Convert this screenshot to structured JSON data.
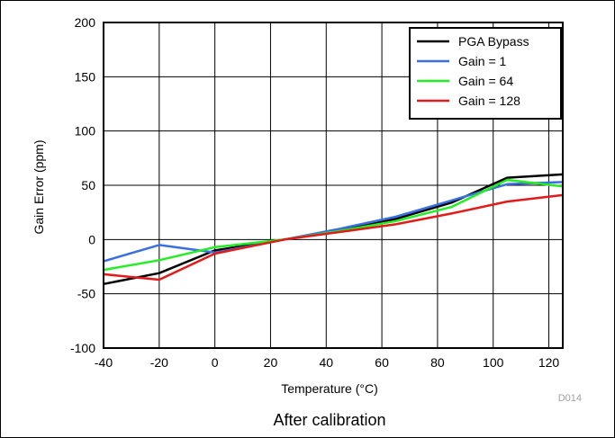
{
  "chart_data": {
    "type": "line",
    "xlabel": "Temperature (°C)",
    "ylabel": "Gain Error (ppm)",
    "caption": "After calibration",
    "figure_id": "D014",
    "xlim": [
      -40,
      125
    ],
    "ylim": [
      -100,
      200
    ],
    "x_ticks": [
      -40,
      -20,
      0,
      20,
      40,
      60,
      80,
      100,
      120
    ],
    "y_ticks": [
      -100,
      -50,
      0,
      50,
      100,
      150,
      200
    ],
    "grid": true,
    "legend_position": "top-right",
    "series": [
      {
        "name": "PGA Bypass",
        "color": "#000000",
        "x": [
          -40,
          -20,
          0,
          25,
          45,
          65,
          85,
          105,
          125
        ],
        "y": [
          -41,
          -31,
          -10,
          0,
          9,
          19,
          34,
          57,
          60
        ]
      },
      {
        "name": "Gain = 1",
        "color": "#3a6fe0",
        "x": [
          -40,
          -20,
          0,
          25,
          45,
          65,
          85,
          105,
          125
        ],
        "y": [
          -20,
          -5,
          -12,
          0,
          10,
          21,
          36,
          51,
          53
        ]
      },
      {
        "name": "Gain = 64",
        "color": "#22ee22",
        "x": [
          -40,
          -20,
          0,
          25,
          45,
          65,
          85,
          105,
          125
        ],
        "y": [
          -28,
          -19,
          -7,
          0,
          8,
          17,
          30,
          55,
          49
        ]
      },
      {
        "name": "Gain = 128",
        "color": "#e31a1a",
        "x": [
          -40,
          -20,
          0,
          25,
          45,
          65,
          85,
          105,
          125
        ],
        "y": [
          -32,
          -37,
          -13,
          0,
          7,
          14,
          24,
          35,
          41
        ]
      }
    ]
  }
}
